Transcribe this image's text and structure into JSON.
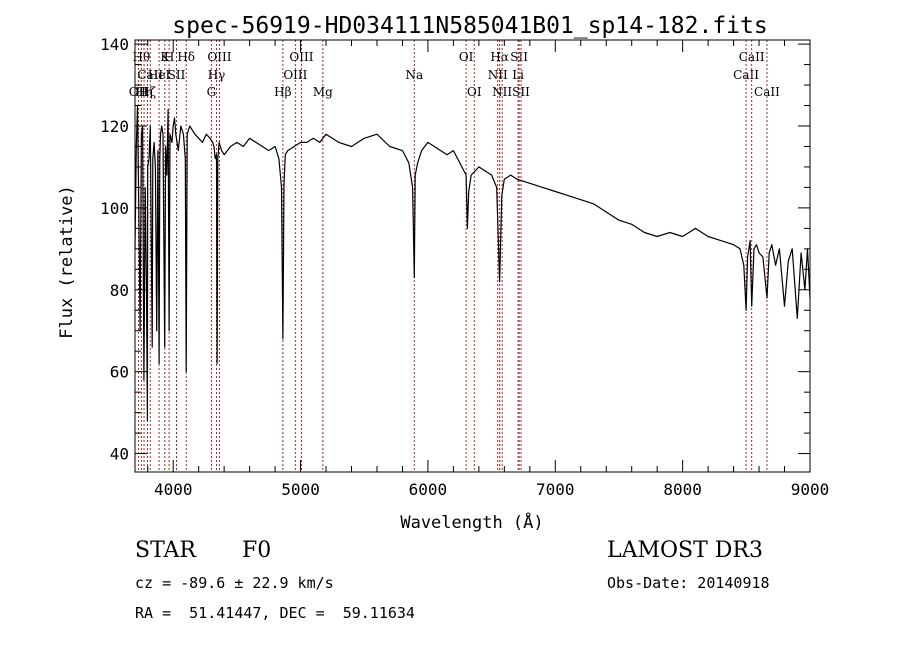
{
  "chart_data": {
    "type": "line",
    "title": "spec-56919-HD034111N585041B01_sp14-182.fits",
    "xlabel": "Wavelength (Å)",
    "ylabel": "Flux (relative)",
    "xlim": [
      3700,
      9000
    ],
    "ylim": [
      35.5,
      141
    ],
    "xticks": [
      4000,
      5000,
      6000,
      7000,
      8000,
      9000
    ],
    "yticks": [
      40,
      60,
      80,
      100,
      120,
      140
    ],
    "grid": false,
    "line_color": "#000000",
    "marker_color": "#a52a2a",
    "series": [
      {
        "x": [
          3700,
          3710,
          3720,
          3730,
          3740,
          3750,
          3760,
          3770,
          3780,
          3790,
          3797,
          3800,
          3810,
          3820,
          3835,
          3840,
          3850,
          3860,
          3870,
          3880,
          3889,
          3895,
          3900,
          3910,
          3920,
          3933,
          3940,
          3950,
          3960,
          3968,
          3975,
          3990,
          4000,
          4010,
          4020,
          4040,
          4060,
          4080,
          4095,
          4102,
          4110,
          4130,
          4150,
          4170,
          4200,
          4230,
          4260,
          4290,
          4310,
          4320,
          4330,
          4340,
          4345,
          4350,
          4360,
          4380,
          4400,
          4450,
          4500,
          4550,
          4600,
          4650,
          4700,
          4750,
          4800,
          4830,
          4850,
          4861,
          4870,
          4880,
          4900,
          4950,
          5000,
          5050,
          5100,
          5150,
          5200,
          5300,
          5400,
          5500,
          5600,
          5700,
          5800,
          5850,
          5880,
          5893,
          5900,
          5920,
          5950,
          6000,
          6050,
          6100,
          6150,
          6200,
          6250,
          6300,
          6310,
          6320,
          6340,
          6400,
          6450,
          6500,
          6540,
          6563,
          6580,
          6600,
          6650,
          6700,
          6800,
          6900,
          7000,
          7100,
          7200,
          7300,
          7400,
          7500,
          7600,
          7700,
          7800,
          7900,
          8000,
          8050,
          8100,
          8200,
          8300,
          8400,
          8450,
          8480,
          8498,
          8510,
          8530,
          8542,
          8560,
          8580,
          8600,
          8630,
          8662,
          8680,
          8700,
          8730,
          8760,
          8800,
          8830,
          8860,
          8900,
          8930,
          8960,
          8980,
          9000
        ],
        "y": [
          90,
          115,
          125,
          100,
          70,
          118,
          120,
          58,
          105,
          80,
          48,
          110,
          112,
          120,
          66,
          112,
          116,
          110,
          70,
          114,
          62,
          112,
          118,
          120,
          118,
          66,
          115,
          108,
          124,
          70,
          118,
          116,
          120,
          122,
          118,
          114,
          120,
          118,
          112,
          60,
          118,
          120,
          119,
          118,
          117,
          116,
          118,
          117,
          116,
          115,
          112,
          113,
          62,
          112,
          116,
          114,
          113,
          115,
          116,
          115,
          117,
          116,
          115,
          114,
          115,
          112,
          105,
          68,
          106,
          113,
          114,
          115,
          116,
          116,
          117,
          116,
          118,
          116,
          115,
          117,
          118,
          115,
          114,
          111,
          105,
          83,
          108,
          111,
          114,
          116,
          115,
          114,
          113,
          114,
          111,
          108,
          95,
          104,
          108,
          110,
          109,
          108,
          105,
          82,
          103,
          107,
          108,
          107,
          106,
          105,
          104,
          103,
          102,
          101,
          99,
          97,
          96,
          94,
          93,
          94,
          93,
          94,
          95,
          93,
          92,
          91,
          90,
          86,
          75,
          88,
          92,
          76,
          90,
          91,
          89,
          88,
          78,
          89,
          91,
          86,
          90,
          76,
          87,
          90,
          73,
          89,
          80,
          90,
          78
        ]
      }
    ],
    "line_markers": [
      {
        "wl": 3727,
        "label": "OII",
        "row": 3
      },
      {
        "wl": 3750,
        "label": "Hθ",
        "row": 1
      },
      {
        "wl": 3771,
        "label": "Hη",
        "row": 3
      },
      {
        "wl": 3798,
        "label": "Hζ",
        "row": 3
      },
      {
        "wl": 3820,
        "label": "CaII",
        "row": 2
      },
      {
        "wl": 3889,
        "label": "HeI",
        "row": 2
      },
      {
        "wl": 3934,
        "label": "K",
        "row": 1
      },
      {
        "wl": 3968,
        "label": "H",
        "row": 1
      },
      {
        "wl": 4026,
        "label": "SII",
        "row": 2
      },
      {
        "wl": 4102,
        "label": "Hδ",
        "row": 1
      },
      {
        "wl": 4300,
        "label": "G",
        "row": 3
      },
      {
        "wl": 4340,
        "label": "Hγ",
        "row": 2
      },
      {
        "wl": 4363,
        "label": "OIII",
        "row": 1
      },
      {
        "wl": 4861,
        "label": "Hβ",
        "row": 3
      },
      {
        "wl": 4959,
        "label": "OIII",
        "row": 2
      },
      {
        "wl": 5007,
        "label": "OIII",
        "row": 1
      },
      {
        "wl": 5175,
        "label": "Mg",
        "row": 3
      },
      {
        "wl": 5893,
        "label": "Na",
        "row": 2
      },
      {
        "wl": 6300,
        "label": "OI",
        "row": 1
      },
      {
        "wl": 6364,
        "label": "OI",
        "row": 3
      },
      {
        "wl": 6548,
        "label": "NII",
        "row": 2
      },
      {
        "wl": 6563,
        "label": "Hα",
        "row": 1
      },
      {
        "wl": 6583,
        "label": "NII",
        "row": 3
      },
      {
        "wl": 6708,
        "label": "Li",
        "row": 2
      },
      {
        "wl": 6716,
        "label": "SII",
        "row": 1
      },
      {
        "wl": 6731,
        "label": "SII",
        "row": 3
      },
      {
        "wl": 8498,
        "label": "CaII",
        "row": 2
      },
      {
        "wl": 8542,
        "label": "CaII",
        "row": 1
      },
      {
        "wl": 8662,
        "label": "CaII",
        "row": 3
      }
    ]
  },
  "info": {
    "class_label": "STAR",
    "subclass_label": "F0",
    "cz_label": "cz = -89.6 ± 22.9 km/s",
    "radec_label": "RA =  51.41447, DEC =  59.11634",
    "survey_label": "LAMOST DR3",
    "obsdate_label": "Obs-Date: 20140918"
  }
}
